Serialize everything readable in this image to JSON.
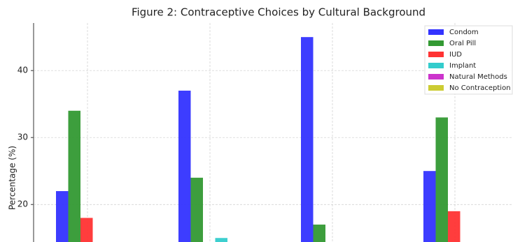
{
  "chart_data": {
    "type": "bar",
    "title": "Figure 2: Contraceptive Choices by Cultural Background",
    "y_label": "Percentage (%)",
    "categories": [
      null,
      null,
      null,
      null
    ],
    "series": [
      {
        "name": "Condom",
        "color": "#3333ff",
        "values": [
          22,
          37,
          45,
          25
        ]
      },
      {
        "name": "Oral Pill",
        "color": "#339933",
        "values": [
          34,
          24,
          17,
          33
        ]
      },
      {
        "name": "IUD",
        "color": "#ff3333",
        "values": [
          18,
          null,
          null,
          19
        ]
      },
      {
        "name": "Implant",
        "color": "#33cccc",
        "values": [
          null,
          15,
          null,
          null
        ]
      },
      {
        "name": "Natural Methods",
        "color": "#cc33cc",
        "values": [
          null,
          null,
          null,
          null
        ]
      },
      {
        "name": "No Contraception",
        "color": "#cccc33",
        "values": [
          null,
          null,
          null,
          null
        ]
      }
    ],
    "ylim": [
      14.4,
      47.1
    ],
    "yticks": [
      20,
      30,
      40
    ],
    "grid": true,
    "legend": "upper right"
  }
}
